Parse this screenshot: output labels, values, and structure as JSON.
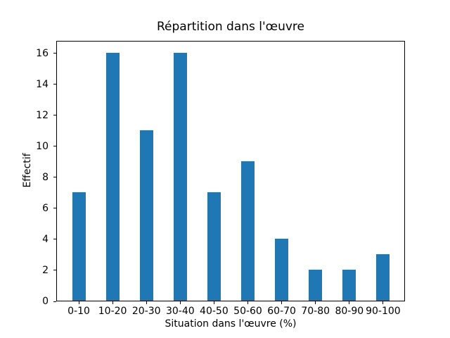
{
  "figure": {
    "background": "#ffffff",
    "axis_color": "#000000",
    "text_color": "#000000"
  },
  "chart_data": {
    "type": "bar",
    "title": "Répartition dans l'œuvre",
    "xlabel": "Situation dans l'œuvre (%)",
    "ylabel": "Effectif",
    "categories": [
      "0-10",
      "10-20",
      "20-30",
      "30-40",
      "40-50",
      "50-60",
      "60-70",
      "70-80",
      "80-90",
      "90-100"
    ],
    "values": [
      7,
      16,
      11,
      16,
      7,
      9,
      4,
      2,
      2,
      3
    ],
    "yticks": [
      0,
      2,
      4,
      6,
      8,
      10,
      12,
      14,
      16
    ],
    "ylim": [
      0,
      16.8
    ],
    "bar_color": "#1f77b4",
    "grid": false,
    "legend": false
  }
}
